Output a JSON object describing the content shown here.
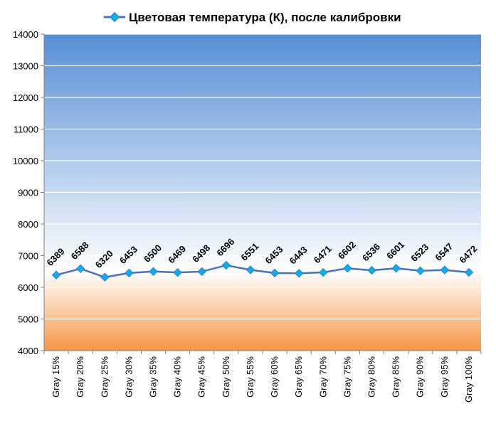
{
  "chart_data": {
    "type": "line",
    "title": "Цветовая температура (К), после калибровки",
    "categories": [
      "Gray 15%",
      "Gray 20%",
      "Gray 25%",
      "Gray 30%",
      "Gray 35%",
      "Gray 40%",
      "Gray 45%",
      "Gray 50%",
      "Gray 55%",
      "Gray 60%",
      "Gray 65%",
      "Gray 70%",
      "Gray 75%",
      "Gray 80%",
      "Gray 85%",
      "Gray 90%",
      "Gray 95%",
      "Gray 100%"
    ],
    "series": [
      {
        "name": "Цветовая температура (К), после калибровки",
        "values": [
          6389,
          6588,
          6320,
          6453,
          6500,
          6469,
          6498,
          6696,
          6551,
          6453,
          6443,
          6471,
          6602,
          6536,
          6601,
          6523,
          6547,
          6472
        ],
        "color": "#4472c4"
      }
    ],
    "ylim": [
      4000,
      14000
    ],
    "yticks": [
      4000,
      5000,
      6000,
      7000,
      8000,
      9000,
      10000,
      11000,
      12000,
      13000,
      14000
    ],
    "grid": true,
    "legend": "top",
    "background": {
      "upper_top": "#558ed5",
      "upper_bottom": "#ffffff",
      "lower_top": "#ffffff",
      "lower_bottom": "#f79646",
      "split_value": 6500
    },
    "marker_color": "#00b0f0"
  }
}
